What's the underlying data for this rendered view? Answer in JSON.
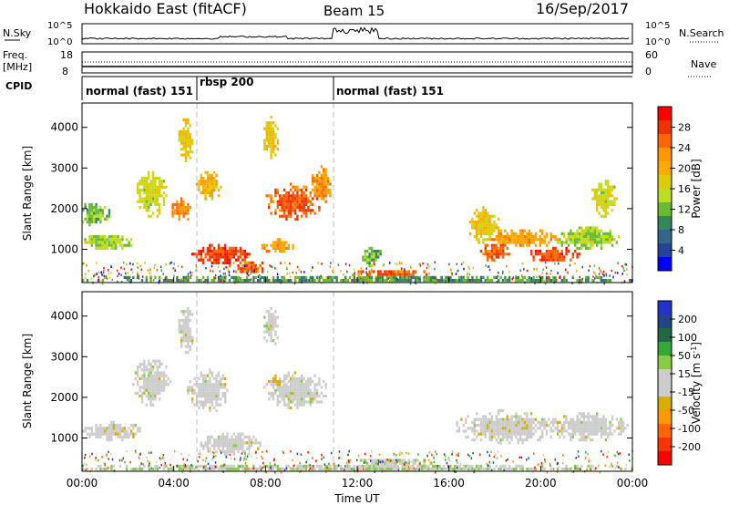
{
  "header": {
    "title": "Hokkaido East (fitACF)",
    "beam": "Beam 15",
    "date": "16/Sep/2017"
  },
  "top_panel": {
    "nsky_label": "N.Sky",
    "nsky_ticks": [
      "10^5",
      "10^0"
    ],
    "nsearch_label": "N.Search",
    "nsearch_ticks": [
      "10^5",
      "10^0"
    ],
    "freq_label": "Freq.",
    "freq_unit": "[MHz]",
    "freq_ticks": [
      "18",
      "8"
    ],
    "nave_label": "Nave",
    "nave_ticks": [
      "60",
      "0"
    ],
    "cpid_label": "CPID",
    "cpid_segments": [
      {
        "label": "normal (fast) 151",
        "start_hour": 0,
        "end_hour": 5.0
      },
      {
        "label": "rbsp 200",
        "start_hour": 5.0,
        "end_hour": 10.9
      },
      {
        "label": "normal (fast) 151",
        "start_hour": 10.9,
        "end_hour": 24
      }
    ]
  },
  "power_colorbar": {
    "label": "Power [dB]",
    "ticks": [
      "28",
      "24",
      "20",
      "16",
      "12",
      "8",
      "4"
    ],
    "colors": [
      "#ff0000",
      "#ee3300",
      "#ff6600",
      "#ff9900",
      "#ffaa00",
      "#ddcc00",
      "#bbdd22",
      "#66bb33",
      "#338855",
      "#336688",
      "#224499",
      "#0000ff"
    ]
  },
  "velocity_colorbar": {
    "label": "Velocity [m s",
    "label_sup": "-1",
    "label_end": "]",
    "ticks": [
      "200",
      "100",
      "50",
      "15",
      "-15",
      "-50",
      "-100",
      "-200"
    ],
    "colors": [
      "#2233cc",
      "#224488",
      "#226644",
      "#33aa33",
      "#88cc44",
      "#cccccc",
      "#cccccc",
      "#ddaa00",
      "#ff9900",
      "#ff6600",
      "#ff3300",
      "#ff0000"
    ]
  },
  "chart_data": [
    {
      "type": "heatmap",
      "variable": "Power",
      "xlabel": "Time UT",
      "ylabel": "Slant Range [km]",
      "x_ticks": [
        "00:00",
        "04:00",
        "08:00",
        "12:00",
        "16:00",
        "20:00",
        "00:00"
      ],
      "xlim_hours": [
        0,
        24
      ],
      "y_ticks": [
        "4000",
        "3000",
        "2000",
        "1000"
      ],
      "ylim_km": [
        180,
        4600
      ],
      "zlim_db": [
        0,
        32
      ],
      "blobs": [
        {
          "t": 1.0,
          "r": 1200,
          "dt": 1.0,
          "dr": 180,
          "v": 14
        },
        {
          "t": 0.5,
          "r": 1900,
          "dt": 0.6,
          "dr": 250,
          "v": 12
        },
        {
          "t": 3.0,
          "r": 2400,
          "dt": 0.6,
          "dr": 500,
          "v": 16
        },
        {
          "t": 4.3,
          "r": 2000,
          "dt": 0.4,
          "dr": 250,
          "v": 24
        },
        {
          "t": 4.5,
          "r": 3700,
          "dt": 0.3,
          "dr": 500,
          "v": 18
        },
        {
          "t": 5.5,
          "r": 2600,
          "dt": 0.5,
          "dr": 300,
          "v": 20
        },
        {
          "t": 6.0,
          "r": 900,
          "dt": 1.1,
          "dr": 220,
          "v": 28
        },
        {
          "t": 7.2,
          "r": 600,
          "dt": 0.7,
          "dr": 150,
          "v": 26
        },
        {
          "t": 8.5,
          "r": 1100,
          "dt": 0.6,
          "dr": 150,
          "v": 22
        },
        {
          "t": 8.2,
          "r": 3800,
          "dt": 0.3,
          "dr": 450,
          "v": 18
        },
        {
          "t": 9.2,
          "r": 2200,
          "dt": 1.1,
          "dr": 380,
          "v": 26
        },
        {
          "t": 10.4,
          "r": 2600,
          "dt": 0.4,
          "dr": 400,
          "v": 22
        },
        {
          "t": 12.6,
          "r": 850,
          "dt": 0.4,
          "dr": 220,
          "v": 12
        },
        {
          "t": 13.4,
          "r": 450,
          "dt": 1.5,
          "dr": 80,
          "v": 26
        },
        {
          "t": 17.5,
          "r": 1600,
          "dt": 0.6,
          "dr": 400,
          "v": 18
        },
        {
          "t": 18.0,
          "r": 1000,
          "dt": 0.6,
          "dr": 250,
          "v": 26
        },
        {
          "t": 19.0,
          "r": 1300,
          "dt": 1.6,
          "dr": 200,
          "v": 22
        },
        {
          "t": 20.5,
          "r": 900,
          "dt": 1.0,
          "dr": 160,
          "v": 27
        },
        {
          "t": 22.0,
          "r": 1300,
          "dt": 1.2,
          "dr": 250,
          "v": 14
        },
        {
          "t": 22.7,
          "r": 2300,
          "dt": 0.5,
          "dr": 400,
          "v": 16
        },
        {
          "t": 12.0,
          "r": 300,
          "dt": 12.0,
          "dr": 60,
          "v": 10
        }
      ]
    },
    {
      "type": "heatmap",
      "variable": "Velocity",
      "xlabel": "Time UT",
      "ylabel": "Slant Range [km]",
      "x_ticks": [
        "00:00",
        "04:00",
        "08:00",
        "12:00",
        "16:00",
        "20:00",
        "00:00"
      ],
      "xlim_hours": [
        0,
        24
      ],
      "y_ticks": [
        "4000",
        "3000",
        "2000",
        "1000"
      ],
      "ylim_km": [
        180,
        4600
      ],
      "zlim_ms": [
        -250,
        250
      ],
      "blobs": [
        {
          "t": 1.2,
          "r": 1200,
          "dt": 1.2,
          "dr": 200,
          "v": 0
        },
        {
          "t": 3.0,
          "r": 2400,
          "dt": 0.7,
          "dr": 500,
          "v": 0
        },
        {
          "t": 4.5,
          "r": 3700,
          "dt": 0.3,
          "dr": 500,
          "v": 0
        },
        {
          "t": 5.5,
          "r": 2200,
          "dt": 0.8,
          "dr": 450,
          "v": 0
        },
        {
          "t": 6.5,
          "r": 900,
          "dt": 1.2,
          "dr": 250,
          "v": 0
        },
        {
          "t": 8.2,
          "r": 3800,
          "dt": 0.3,
          "dr": 450,
          "v": 0
        },
        {
          "t": 9.3,
          "r": 2200,
          "dt": 1.2,
          "dr": 400,
          "v": 0
        },
        {
          "t": 8.4,
          "r": 2400,
          "dt": 0.3,
          "dr": 150,
          "v": -60
        },
        {
          "t": 13.5,
          "r": 450,
          "dt": 1.6,
          "dr": 80,
          "v": 30
        },
        {
          "t": 18.5,
          "r": 1300,
          "dt": 2.0,
          "dr": 350,
          "v": 0
        },
        {
          "t": 22.0,
          "r": 1300,
          "dt": 1.5,
          "dr": 300,
          "v": 0
        },
        {
          "t": 12.0,
          "r": 300,
          "dt": 12.0,
          "dr": 60,
          "v": 25
        }
      ]
    }
  ]
}
